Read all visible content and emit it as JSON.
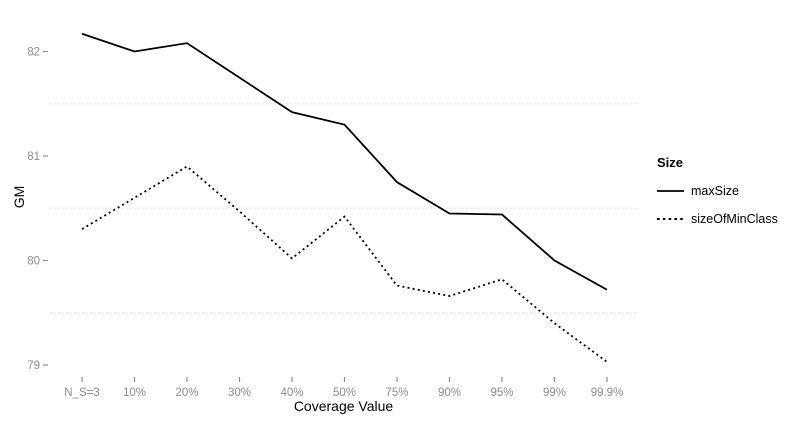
{
  "chart_data": {
    "type": "line",
    "title": "",
    "xlabel": "Coverage Value",
    "ylabel": "GM",
    "categories": [
      "N_S=3",
      "10%",
      "20%",
      "30%",
      "40%",
      "50%",
      "75%",
      "90%",
      "95%",
      "99%",
      "99.9%"
    ],
    "series": [
      {
        "name": "maxSize",
        "style": "solid",
        "values": [
          82.17,
          82.0,
          82.08,
          81.75,
          81.42,
          81.3,
          80.75,
          80.45,
          80.44,
          80.0,
          79.72
        ]
      },
      {
        "name": "sizeOfMinClass",
        "style": "dotted",
        "values": [
          80.3,
          80.6,
          80.9,
          80.47,
          80.02,
          80.42,
          79.76,
          79.66,
          79.82,
          79.4,
          79.03
        ]
      }
    ],
    "yticks": [
      79,
      80,
      81,
      82
    ],
    "ytick_labels": [
      "79",
      "80",
      "81",
      "82"
    ],
    "ylim": [
      78.85,
      82.35
    ],
    "minor_gridlines": [
      79.5,
      80.5,
      81.5
    ],
    "grid": "minor horizontal dotted only",
    "legend": {
      "title": "Size",
      "position": "right"
    },
    "colors": {
      "line": "#000000",
      "tick_text": "#8c8c8c",
      "tick_mark": "#8c8c8c",
      "gridline": "#dcdcdc",
      "background": "#ffffff"
    }
  }
}
